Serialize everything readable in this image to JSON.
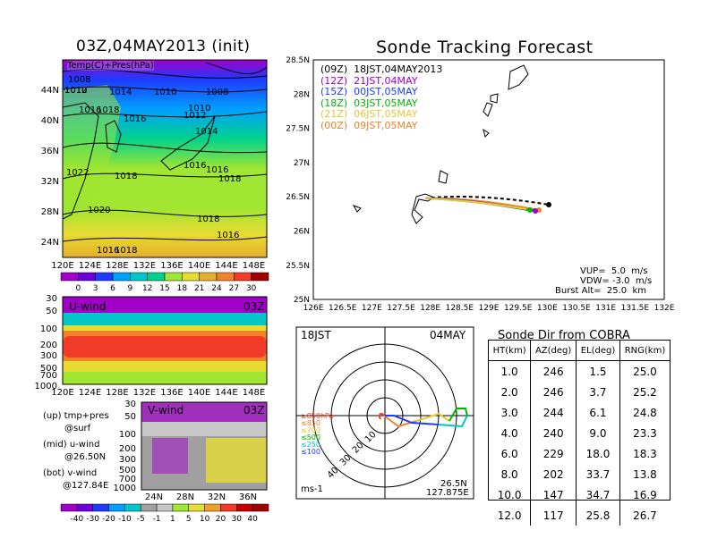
{
  "left_title": "03Z,04MAY2013 (init)",
  "right_title": "Sonde Tracking Forecast",
  "surface_map": {
    "label": "Temp(C)+Pres(hPa)",
    "lat_labels": [
      "44N",
      "40N",
      "36N",
      "32N",
      "28N",
      "24N"
    ],
    "lon_labels": [
      "120E",
      "124E",
      "128E",
      "132E",
      "136E",
      "140E",
      "144E",
      "148E"
    ],
    "isobar_labels": [
      "1008",
      "1010",
      "1012",
      "1014",
      "1010",
      "1008",
      "1018",
      "1016",
      "1010",
      "1012",
      "1014",
      "1016",
      "1022",
      "1018",
      "1016",
      "1016",
      "1018",
      "1020",
      "1018",
      "1016",
      "1018",
      "1016"
    ],
    "colorbar_labels": [
      "0",
      "3",
      "6",
      "9",
      "12",
      "15",
      "18",
      "21",
      "24",
      "27",
      "30"
    ],
    "colorbar_colors": [
      "#a000c8",
      "#6a00d8",
      "#1e3cff",
      "#00a0ff",
      "#00c8c8",
      "#00d28c",
      "#a0e632",
      "#e6dc32",
      "#e6af2d",
      "#f08228",
      "#f03c28",
      "#a00000"
    ]
  },
  "u_wind": {
    "label": "U-wind",
    "time": "03Z",
    "p_labels": [
      "30",
      "50",
      "100",
      "200",
      "300",
      "500",
      "700",
      "1000"
    ],
    "lon_labels": [
      "120E",
      "124E",
      "128E",
      "132E",
      "136E",
      "140E",
      "144E",
      "148E"
    ]
  },
  "v_wind": {
    "label": "V-wind",
    "time": "03Z",
    "p_labels": [
      "30",
      "50",
      "100",
      "200",
      "300",
      "500",
      "700",
      "1000"
    ],
    "lat_labels": [
      "24N",
      "28N",
      "32N",
      "36N"
    ],
    "colorbar_labels": [
      "-40",
      "-30",
      "-20",
      "-10",
      "-5",
      "-1",
      "1",
      "5",
      "10",
      "20",
      "30",
      "40"
    ],
    "colorbar_colors": [
      "#a000c8",
      "#6e00dc",
      "#1e3cff",
      "#00a0ff",
      "#00c8c8",
      "#a0a0a0",
      "#c8c8c8",
      "#a0e632",
      "#e6dc32",
      "#f0a028",
      "#f03c28",
      "#c80000",
      "#a00000"
    ]
  },
  "notes": [
    "(up) tmp+pres",
    "@surf",
    "(mid) u-wind",
    "@26.50N",
    "(bot) v-wind",
    "@127.84E"
  ],
  "track_map": {
    "lat_labels": [
      "28.5N",
      "28N",
      "27.5N",
      "27N",
      "26.5N",
      "26N",
      "25.5N",
      "25N"
    ],
    "lon_labels": [
      "126E",
      "126.5E",
      "127E",
      "127.5E",
      "128E",
      "128.5E",
      "129E",
      "129.5E",
      "130E",
      "130.5E",
      "131E",
      "131.5E",
      "132E"
    ],
    "legend": [
      {
        "text": "(09Z)  18JST,04MAY2013",
        "color": "#000000"
      },
      {
        "text": "(12Z)  21JST,04MAY",
        "color": "#a000c8"
      },
      {
        "text": "(15Z)  00JST,05MAY",
        "color": "#1e3cff"
      },
      {
        "text": "(18Z)  03JST,05MAY",
        "color": "#00b400"
      },
      {
        "text": "(21Z)  06JST,05MAY",
        "color": "#e6c832"
      },
      {
        "text": "(00Z)  09JST,05MAY",
        "color": "#f08228"
      }
    ],
    "vup": "VUP=  5.0  m/s",
    "vdw": "VDW= -3.0  m/s",
    "burst": "Burst Alt=  25.0  km"
  },
  "polar": {
    "time": "18JST",
    "date": "04MAY",
    "ring_labels": [
      "10",
      "20",
      "30",
      "40"
    ],
    "levels": [
      {
        "text": "≥850hPa",
        "color": "#f03c28"
      },
      {
        "text": "≤850",
        "color": "#f08228"
      },
      {
        "text": "≤700",
        "color": "#e6c832"
      },
      {
        "text": "≤500",
        "color": "#00b400"
      },
      {
        "text": "≤250",
        "color": "#00c8c8"
      },
      {
        "text": "≤100",
        "color": "#1e3cff"
      }
    ],
    "unit": "ms-1",
    "lat": "26.5N",
    "lon": "127.875E"
  },
  "sonde_table": {
    "title": "Sonde Dir from COBRA",
    "headers": [
      "HT(km)",
      "AZ(deg)",
      "EL(deg)",
      "RNG(km)"
    ],
    "rows": [
      [
        "1.0",
        "246",
        "1.5",
        "25.0"
      ],
      [
        "2.0",
        "246",
        "3.7",
        "25.2"
      ],
      [
        "3.0",
        "244",
        "6.1",
        "24.8"
      ],
      [
        "4.0",
        "240",
        "9.0",
        "23.3"
      ],
      [
        "6.0",
        "229",
        "18.0",
        "18.3"
      ],
      [
        "8.0",
        "202",
        "33.7",
        "13.8"
      ],
      [
        "10.0",
        "147",
        "34.7",
        "16.9"
      ],
      [
        "12.0",
        "117",
        "25.8",
        "26.7"
      ]
    ]
  }
}
